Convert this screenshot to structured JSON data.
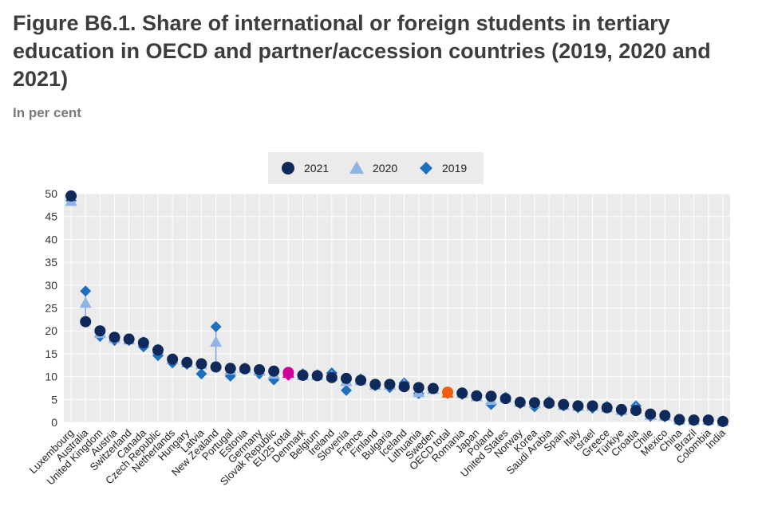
{
  "title": "Figure B6.1. Share of international or foreign students in tertiary education in OECD and partner/accession countries (2019, 2020 and 2021)",
  "subtitle": "In per cent",
  "colors": {
    "y2021": "#0f2a5a",
    "y2020": "#8fb3e3",
    "y2019": "#1f6fbf",
    "highlight_eu25": "#cc0099",
    "highlight_oecd": "#ee5c0f",
    "plot_bg": "#ebebeb",
    "grid": "#ffffff",
    "legend_bg": "#ebebeb",
    "connector": "#7aa7e0"
  },
  "chart_data": {
    "type": "scatter",
    "title": "",
    "xlabel": "",
    "ylabel": "",
    "ylim": [
      0,
      50
    ],
    "yticks": [
      0,
      5,
      10,
      15,
      20,
      25,
      30,
      35,
      40,
      45,
      50
    ],
    "grid": true,
    "legend_position": "top-center",
    "legend": [
      {
        "label": "2021",
        "marker": "circle",
        "color": "#0f2a5a"
      },
      {
        "label": "2020",
        "marker": "triangle",
        "color": "#8fb3e3"
      },
      {
        "label": "2019",
        "marker": "diamond",
        "color": "#1f6fbf"
      }
    ],
    "categories": [
      "Luxembourg",
      "Australia",
      "United Kingdom",
      "Austria",
      "Switzerland",
      "Canada",
      "Czech Republic",
      "Netherlands",
      "Hungary",
      "Latvia",
      "New Zealand",
      "Portugal",
      "Estonia",
      "Germany",
      "Slovak Republic",
      "EU25 total",
      "Denmark",
      "Belgium",
      "Ireland",
      "Slovenia",
      "France",
      "Finland",
      "Bulgaria",
      "Iceland",
      "Lithuania",
      "Sweden",
      "OECD total",
      "Romania",
      "Japan",
      "Poland",
      "United States",
      "Norway",
      "Korea",
      "Saudi Arabia",
      "Spain",
      "Italy",
      "Israel",
      "Greece",
      "Türkiye",
      "Croatia",
      "Chile",
      "Mexico",
      "China",
      "Brazil",
      "Colombia",
      "India"
    ],
    "highlights": {
      "EU25 total": "#cc0099",
      "OECD total": "#ee5c0f"
    },
    "series": [
      {
        "name": "2021",
        "marker": "circle",
        "values": [
          49.5,
          22,
          20,
          18.6,
          18.2,
          17.4,
          15.8,
          13.8,
          13.1,
          12.8,
          12.1,
          11.8,
          11.7,
          11.5,
          11.2,
          10.9,
          10.3,
          10.2,
          9.8,
          9.6,
          9.2,
          8.3,
          8.3,
          7.8,
          7.6,
          7.4,
          6.6,
          6.4,
          5.8,
          5.7,
          5.2,
          4.4,
          4.3,
          4.2,
          3.9,
          3.6,
          3.6,
          3.2,
          2.8,
          2.6,
          1.8,
          1.5,
          0.6,
          0.5,
          0.5,
          0.2
        ]
      },
      {
        "name": "2020",
        "marker": "triangle",
        "values": [
          48.3,
          26,
          19.4,
          18.3,
          18,
          17.5,
          15.9,
          13.7,
          13,
          12.6,
          17.5,
          11.4,
          11.8,
          11.2,
          10.5,
          10.7,
          10.2,
          10.2,
          10.1,
          8.9,
          9.1,
          8.1,
          8.1,
          8.2,
          6.5,
          7.2,
          6.4,
          6.3,
          5.6,
          4.8,
          5.3,
          4.4,
          4.1,
          4.4,
          3.7,
          3.5,
          3.5,
          3.2,
          2.6,
          2.9,
          1.5,
          1.4,
          0.5,
          0.4,
          0.4,
          0.2
        ]
      },
      {
        "name": "2019",
        "marker": "diamond",
        "values": [
          48.5,
          28.7,
          18.8,
          17.9,
          17.9,
          16.5,
          14.6,
          13,
          12.7,
          10.6,
          20.9,
          10.1,
          11.9,
          10.6,
          9.3,
          10.3,
          10.6,
          10.4,
          10.8,
          7,
          9.5,
          8,
          7.6,
          8.6,
          6.3,
          7.5,
          6.3,
          6.1,
          5.8,
          3.9,
          5.5,
          4.1,
          3.4,
          4.6,
          3.6,
          3.2,
          3.1,
          3.5,
          2.4,
          3.6,
          1.3,
          1.2,
          0.4,
          0.4,
          0.4,
          0.1
        ]
      }
    ]
  }
}
